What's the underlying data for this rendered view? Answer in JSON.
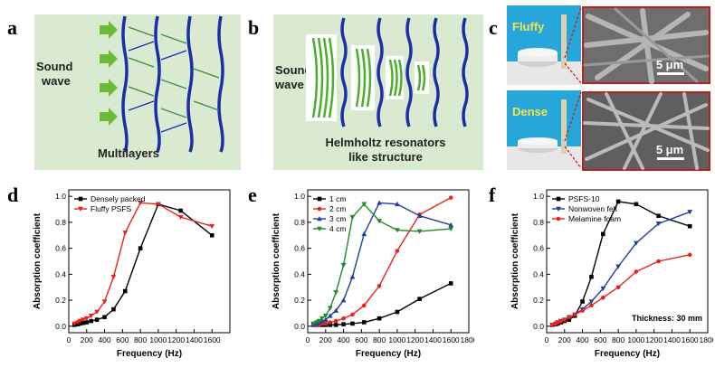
{
  "panel_labels": {
    "a": "a",
    "b": "b",
    "c": "c",
    "d": "d",
    "e": "e",
    "f": "f"
  },
  "schematic_a": {
    "sound_label_1": "Sound",
    "sound_label_2": "wave",
    "caption": "Multilayers"
  },
  "schematic_b": {
    "sound_label_1": "Sound",
    "sound_label_2": "wave",
    "caption_1": "Helmholtz resonators",
    "caption_2": "like structure"
  },
  "photos_c": {
    "top_label": "Fluffy",
    "bottom_label": "Dense",
    "scale_top": "5 μm",
    "scale_bottom": "5 μm"
  },
  "colors": {
    "black": "#000000",
    "red": "#e8231c",
    "blue": "#1f3f9e",
    "green": "#1f8a2a",
    "schematic_bg": "#d6e8c6",
    "arrow_green": "#7cc24a",
    "layer_blue": "#1a2ea8",
    "frame_red": "#c0201a"
  },
  "chart_data": [
    {
      "type": "line",
      "xlabel": "Frequency (Hz)",
      "ylabel": "Absorption coefficient",
      "xlim": [
        0,
        1800
      ],
      "ylim": [
        -0.05,
        1.05
      ],
      "xticks": [
        0,
        200,
        400,
        600,
        800,
        1000,
        1200,
        1400,
        1600
      ],
      "yticks": [
        0.0,
        0.2,
        0.4,
        0.6,
        0.8,
        1.0
      ],
      "legend_position": "top-left",
      "series": [
        {
          "name": "Densely packed",
          "color": "#000000",
          "marker": "square",
          "x": [
            63,
            100,
            125,
            160,
            200,
            250,
            315,
            400,
            500,
            630,
            800,
            1000,
            1250,
            1600
          ],
          "y": [
            0.01,
            0.015,
            0.02,
            0.025,
            0.03,
            0.04,
            0.05,
            0.07,
            0.13,
            0.27,
            0.6,
            0.94,
            0.89,
            0.7
          ]
        },
        {
          "name": "Fluffy PSFS",
          "color": "#e8231c",
          "marker": "triangle-down",
          "x": [
            63,
            100,
            125,
            160,
            200,
            250,
            315,
            400,
            500,
            630,
            800,
            1000,
            1250,
            1600
          ],
          "y": [
            0.02,
            0.03,
            0.04,
            0.05,
            0.06,
            0.08,
            0.11,
            0.19,
            0.38,
            0.72,
            0.95,
            0.94,
            0.84,
            0.77
          ]
        }
      ]
    },
    {
      "type": "line",
      "xlabel": "Frequency (Hz)",
      "ylabel": "Absorption coefficient",
      "xlim": [
        0,
        1800
      ],
      "ylim": [
        -0.05,
        1.05
      ],
      "xticks": [
        0,
        200,
        400,
        600,
        800,
        1000,
        1200,
        1400,
        1600,
        1800
      ],
      "yticks": [
        0.0,
        0.2,
        0.4,
        0.6,
        0.8,
        1.0
      ],
      "legend_position": "top-left",
      "series": [
        {
          "name": "1 cm",
          "color": "#000000",
          "marker": "square",
          "x": [
            63,
            100,
            125,
            160,
            200,
            250,
            315,
            400,
            500,
            630,
            800,
            1000,
            1250,
            1600
          ],
          "y": [
            0.01,
            0.01,
            0.01,
            0.01,
            0.01,
            0.01,
            0.01,
            0.015,
            0.02,
            0.03,
            0.06,
            0.11,
            0.21,
            0.33
          ]
        },
        {
          "name": "2 cm",
          "color": "#e8231c",
          "marker": "circle",
          "x": [
            63,
            100,
            125,
            160,
            200,
            250,
            315,
            400,
            500,
            630,
            800,
            1000,
            1250,
            1600
          ],
          "y": [
            0.01,
            0.01,
            0.01,
            0.02,
            0.02,
            0.03,
            0.04,
            0.06,
            0.09,
            0.16,
            0.31,
            0.58,
            0.86,
            0.99
          ]
        },
        {
          "name": "3 cm",
          "color": "#1f3f9e",
          "marker": "triangle-up",
          "x": [
            63,
            100,
            125,
            160,
            200,
            250,
            315,
            400,
            500,
            630,
            800,
            1000,
            1250,
            1600
          ],
          "y": [
            0.01,
            0.02,
            0.03,
            0.04,
            0.05,
            0.08,
            0.12,
            0.2,
            0.38,
            0.71,
            0.95,
            0.94,
            0.85,
            0.78
          ]
        },
        {
          "name": "4 cm",
          "color": "#1f8a2a",
          "marker": "triangle-down",
          "x": [
            63,
            100,
            125,
            160,
            200,
            250,
            315,
            400,
            500,
            630,
            800,
            1000,
            1250,
            1600
          ],
          "y": [
            0.02,
            0.03,
            0.04,
            0.06,
            0.08,
            0.14,
            0.26,
            0.47,
            0.84,
            0.94,
            0.81,
            0.74,
            0.73,
            0.75
          ]
        }
      ]
    },
    {
      "type": "line",
      "xlabel": "Frequency (Hz)",
      "ylabel": "Absorption coefficient",
      "xlim": [
        0,
        1800
      ],
      "ylim": [
        -0.05,
        1.05
      ],
      "xticks": [
        0,
        200,
        400,
        600,
        800,
        1000,
        1200,
        1400,
        1600,
        1800
      ],
      "yticks": [
        0.0,
        0.2,
        0.4,
        0.6,
        0.8,
        1.0
      ],
      "legend_position": "top-left",
      "annotation": "Thickness: 30 mm",
      "series": [
        {
          "name": "PSFS-10",
          "color": "#000000",
          "marker": "square",
          "x": [
            63,
            100,
            125,
            160,
            200,
            250,
            315,
            400,
            500,
            630,
            800,
            1000,
            1250,
            1600
          ],
          "y": [
            0.01,
            0.015,
            0.02,
            0.03,
            0.04,
            0.05,
            0.08,
            0.19,
            0.38,
            0.71,
            0.96,
            0.94,
            0.85,
            0.77
          ]
        },
        {
          "name": "Nonwoven felt",
          "color": "#1f3f9e",
          "marker": "triangle-down",
          "x": [
            63,
            100,
            125,
            160,
            200,
            250,
            315,
            400,
            500,
            630,
            800,
            1000,
            1250,
            1600
          ],
          "y": [
            0.01,
            0.02,
            0.03,
            0.04,
            0.05,
            0.07,
            0.09,
            0.13,
            0.19,
            0.29,
            0.46,
            0.64,
            0.79,
            0.88
          ]
        },
        {
          "name": "Melamine foam",
          "color": "#e8231c",
          "marker": "circle",
          "x": [
            63,
            100,
            125,
            160,
            200,
            250,
            315,
            400,
            500,
            630,
            800,
            1000,
            1250,
            1600
          ],
          "y": [
            0.01,
            0.02,
            0.03,
            0.04,
            0.05,
            0.07,
            0.09,
            0.12,
            0.16,
            0.22,
            0.3,
            0.42,
            0.5,
            0.55
          ]
        }
      ]
    }
  ]
}
